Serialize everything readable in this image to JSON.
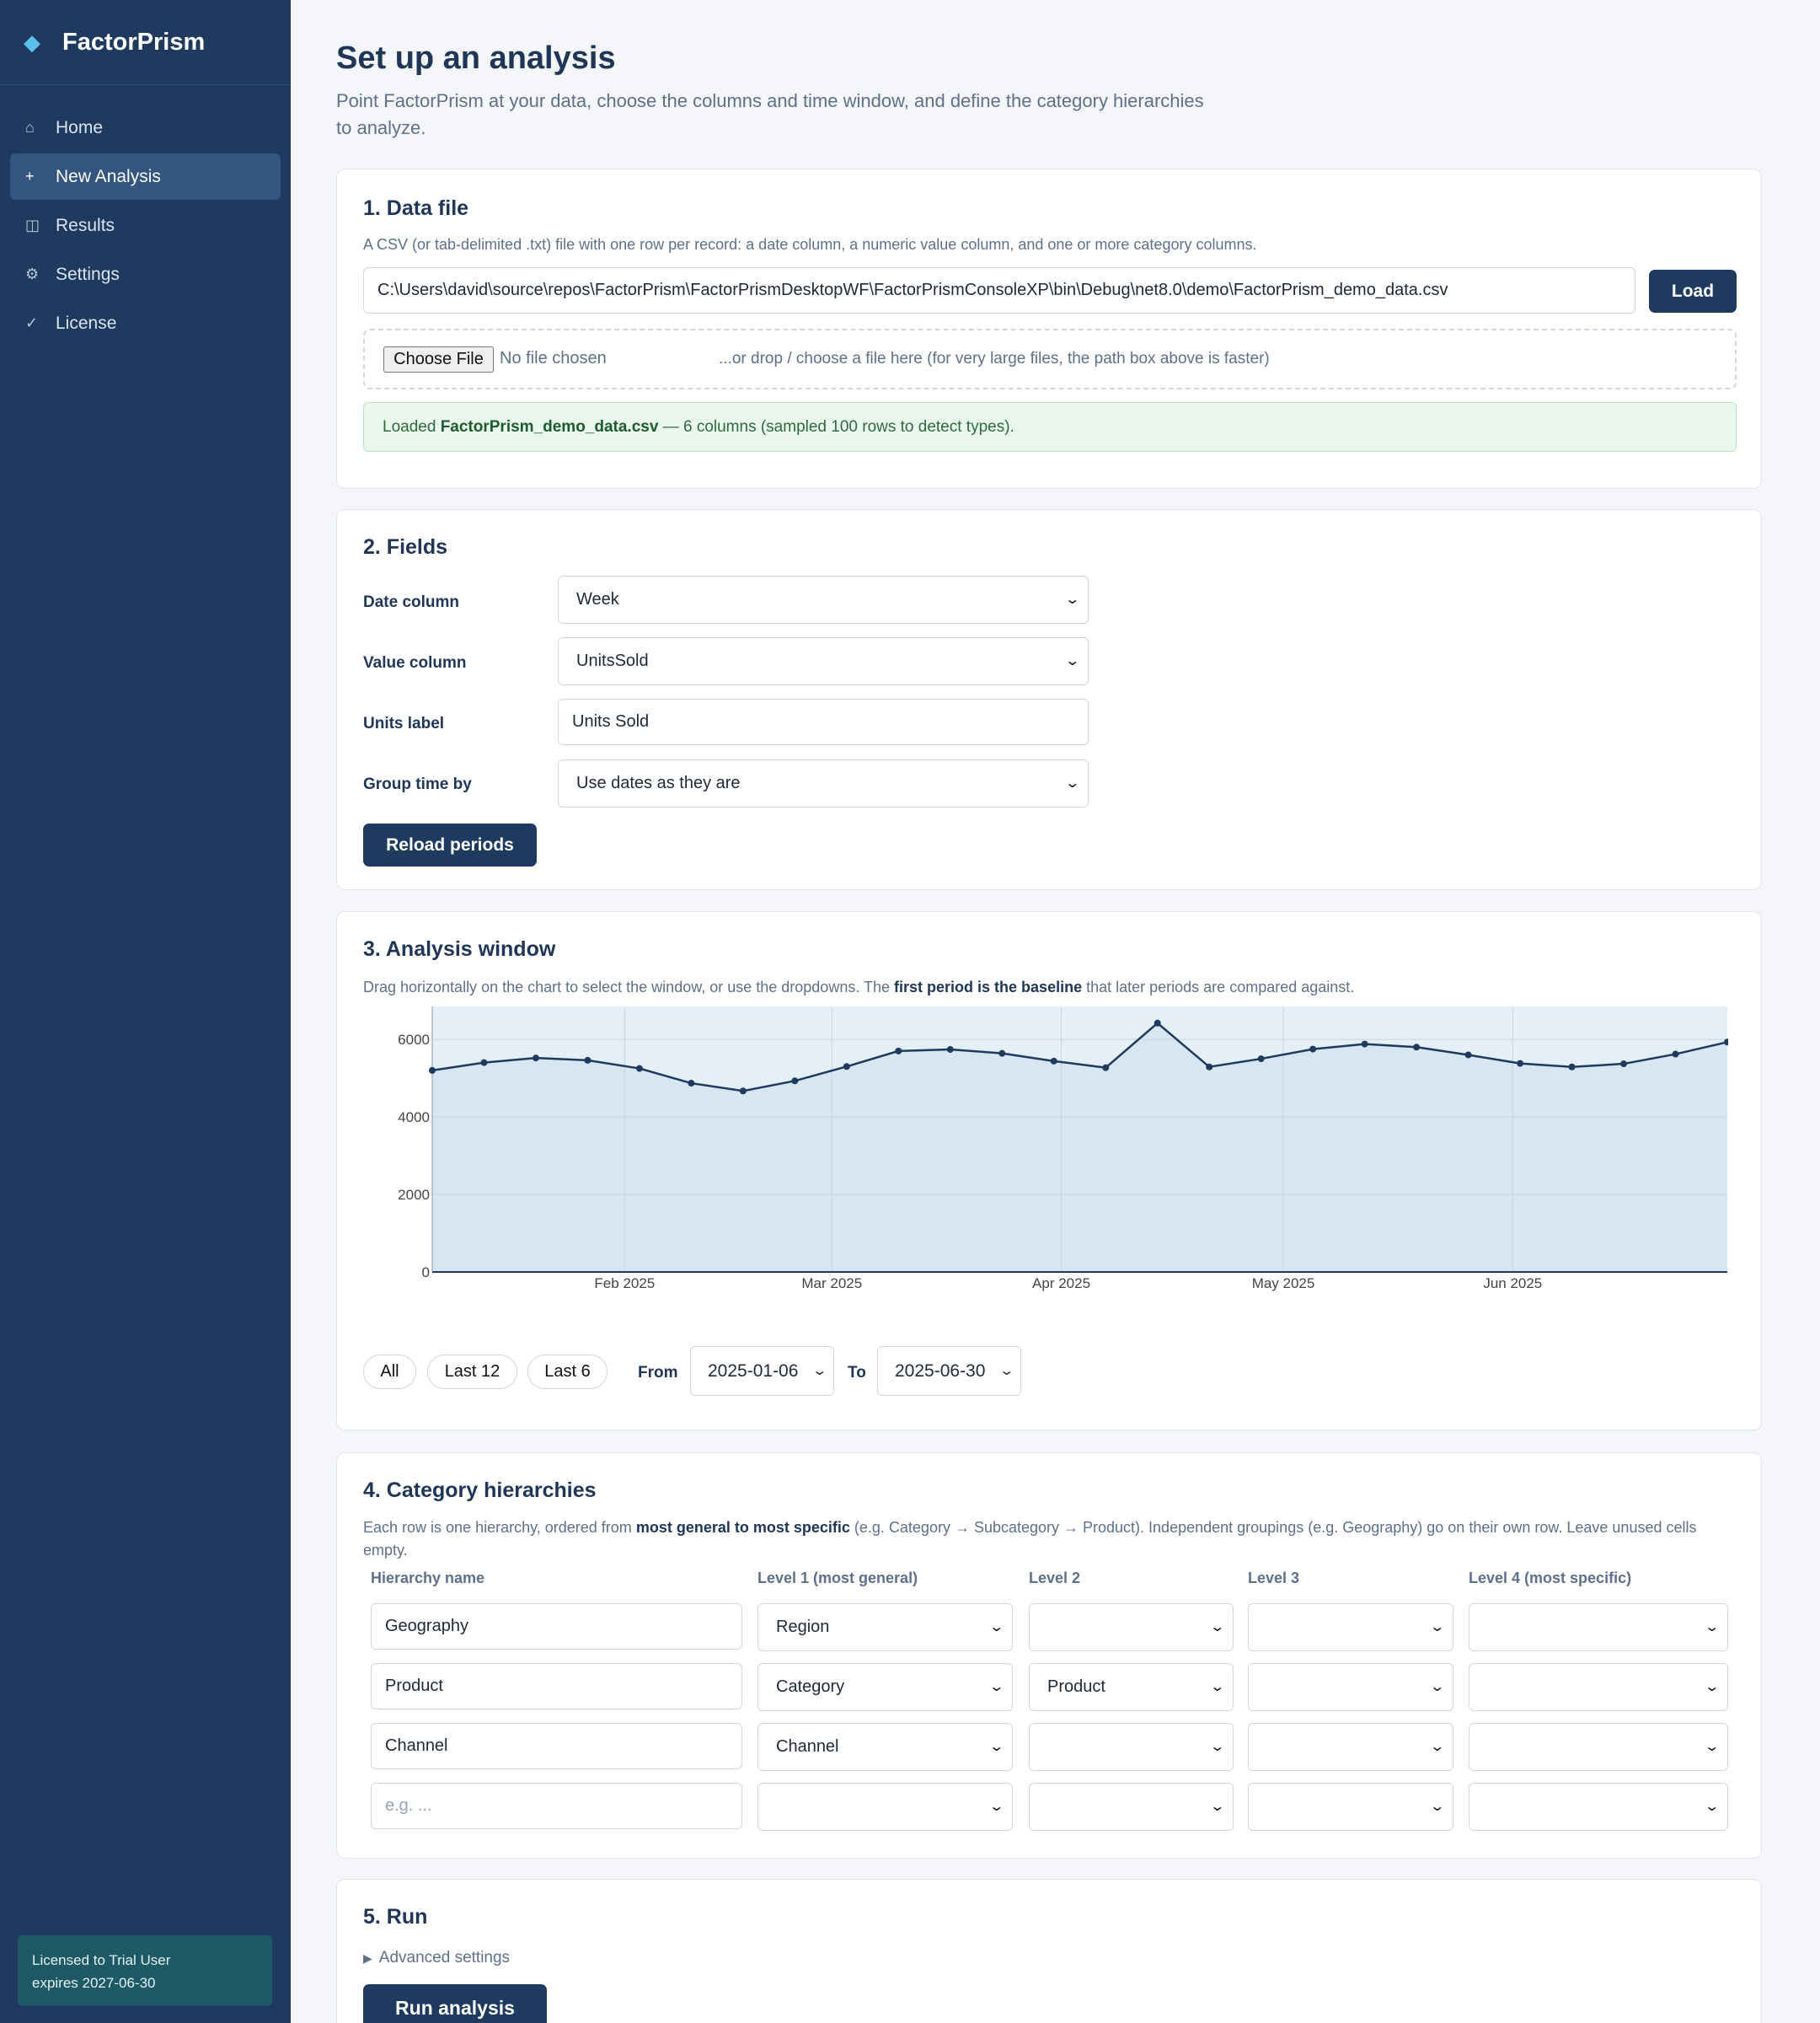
{
  "app": {
    "name": "FactorPrism"
  },
  "nav": [
    {
      "icon": "home-icon",
      "glyph": "⌂",
      "label": "Home",
      "active": false
    },
    {
      "icon": "plus-icon",
      "glyph": "+",
      "label": "New Analysis",
      "active": true
    },
    {
      "icon": "results-icon",
      "glyph": "◫",
      "label": "Results",
      "active": false
    },
    {
      "icon": "gear-icon",
      "glyph": "⚙",
      "label": "Settings",
      "active": false
    },
    {
      "icon": "check-icon",
      "glyph": "✓",
      "label": "License",
      "active": false
    }
  ],
  "license": {
    "line1": "Licensed to Trial User",
    "line2": "expires 2027-06-30"
  },
  "page": {
    "title": "Set up an analysis",
    "subtitle": "Point FactorPrism at your data, choose the columns and time window, and define the category hierarchies to analyze."
  },
  "data_file": {
    "title": "1. Data file",
    "help": "A CSV (or tab-delimited .txt) file with one row per record: a date column, a numeric value column, and one or more category columns.",
    "path": "C:\\Users\\david\\source\\repos\\FactorPrism\\FactorPrismDesktopWF\\FactorPrismConsoleXP\\bin\\Debug\\net8.0\\demo\\FactorPrism_demo_data.csv",
    "load_label": "Load",
    "choose_label": "Choose File",
    "no_file": "No file chosen",
    "drop_hint": "...or drop / choose a file here (for very large files, the path box above is faster)",
    "status_prefix": "Loaded ",
    "status_file": "FactorPrism_demo_data.csv",
    "status_suffix": " — 6 columns (sampled 100 rows to detect types)."
  },
  "fields": {
    "title": "2. Fields",
    "date_label": "Date column",
    "date_value": "Week",
    "value_label": "Value column",
    "value_value": "UnitsSold",
    "units_label": "Units label",
    "units_value": "Units Sold",
    "group_label": "Group time by",
    "group_value": "Use dates as they are",
    "reload_label": "Reload periods"
  },
  "window": {
    "title": "3. Analysis window",
    "help_a": "Drag horizontally on the chart to select the window, or use the dropdowns. The ",
    "help_b": "first period is the baseline",
    "help_c": " that later periods are compared against.",
    "pills": [
      "All",
      "Last 12",
      "Last 6"
    ],
    "from_label": "From",
    "from_value": "2025-01-06",
    "to_label": "To",
    "to_value": "2025-06-30"
  },
  "chart_data": {
    "type": "area",
    "x": [
      "2025-01-06",
      "2025-01-13",
      "2025-01-20",
      "2025-01-27",
      "2025-02-03",
      "2025-02-10",
      "2025-02-17",
      "2025-02-24",
      "2025-03-03",
      "2025-03-10",
      "2025-03-17",
      "2025-03-24",
      "2025-03-31",
      "2025-04-07",
      "2025-04-14",
      "2025-04-21",
      "2025-04-28",
      "2025-05-05",
      "2025-05-12",
      "2025-05-19",
      "2025-05-26",
      "2025-06-02",
      "2025-06-09",
      "2025-06-16",
      "2025-06-23",
      "2025-06-30"
    ],
    "y": [
      5200,
      5400,
      5520,
      5460,
      5250,
      4870,
      4670,
      4930,
      5300,
      5700,
      5740,
      5640,
      5440,
      5270,
      6420,
      5290,
      5500,
      5750,
      5880,
      5800,
      5600,
      5380,
      5290,
      5370,
      5620,
      5930
    ],
    "x_ticks": [
      "Feb 2025",
      "Mar 2025",
      "Apr 2025",
      "May 2025",
      "Jun 2025"
    ],
    "y_ticks": [
      "0",
      "2000",
      "4000",
      "6000"
    ],
    "ylim": [
      0,
      6850
    ],
    "grid": true,
    "colors": {
      "line": "#1e3a5f",
      "fill": "#d8e6f1",
      "plot_bg": "#e4eff8"
    }
  },
  "hierarchies": {
    "title": "4. Category hierarchies",
    "help_a": "Each row is one hierarchy, ordered from ",
    "help_b": "most general to most specific",
    "help_c": " (e.g. Category → Subcategory → Product). Independent groupings (e.g. Geography) go on their own row. Leave unused cells empty.",
    "columns": [
      "Hierarchy name",
      "Level 1 (most general)",
      "Level 2",
      "Level 3",
      "Level 4 (most specific)"
    ],
    "rows": [
      {
        "name": "Geography",
        "l1": "Region",
        "l2": "",
        "l3": "",
        "l4": ""
      },
      {
        "name": "Product",
        "l1": "Category",
        "l2": "Product",
        "l3": "",
        "l4": ""
      },
      {
        "name": "Channel",
        "l1": "Channel",
        "l2": "",
        "l3": "",
        "l4": ""
      },
      {
        "name": "",
        "l1": "",
        "l2": "",
        "l3": "",
        "l4": ""
      }
    ],
    "name_placeholder": "e.g. ..."
  },
  "run": {
    "title": "5. Run",
    "advanced": "Advanced settings",
    "run_label": "Run analysis"
  },
  "colors": {
    "sidebar": "#1e3a5f",
    "accent": "#5bc0eb",
    "primary_button": "#1e3a5f",
    "success_bg": "#e9f7ec"
  }
}
